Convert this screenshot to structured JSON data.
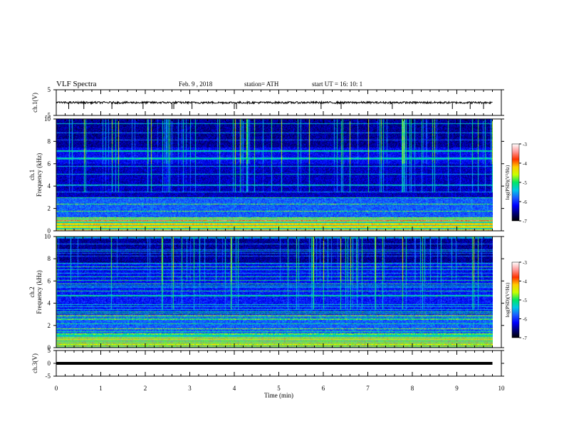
{
  "header": {
    "title": "VLF Spectra",
    "date": "Feb. 9 , 2018",
    "station": "station= ATH",
    "start": "start UT =   16: 10: 1"
  },
  "colors": {
    "spec_ramp": [
      "#000000",
      "#00007a",
      "#0000ff",
      "#1a5cff",
      "#00c8e6",
      "#00e664",
      "#c8ff00",
      "#ffcc00",
      "#ff3300",
      "#ff9999",
      "#ffffff"
    ],
    "trace": "#000000"
  },
  "chart_data": [
    {
      "type": "line",
      "name": "ch1",
      "ylabel": "ch.1(V)",
      "ylim": [
        -5,
        5
      ],
      "yticks": [
        "5",
        "-5"
      ],
      "baseline": 0,
      "noise_amplitude": 0.4,
      "spike_times_min": [
        0.28,
        0.62,
        1.25,
        1.95,
        2.6,
        2.64,
        3.05,
        4.0,
        4.05,
        5.95,
        6.4,
        7.55,
        8.9,
        9.3,
        9.6
      ]
    },
    {
      "type": "heatmap",
      "name": "ch1",
      "ylabel": "ch.1",
      "ylabel2": "Frequency  (kHz)",
      "ylim": [
        0,
        10
      ],
      "yticks": [
        "0",
        "2",
        "4",
        "6",
        "8",
        "10"
      ],
      "colorbar": {
        "label": "log(PSD)(V²/Hz)",
        "range": [
          -7,
          -3
        ],
        "ticks": [
          "-3",
          "-4",
          "-5",
          "-6",
          "-7"
        ]
      }
    },
    {
      "type": "heatmap",
      "name": "ch2",
      "ylabel": "ch.2",
      "ylabel2": "Frequency  (kHz)",
      "ylim": [
        0,
        10
      ],
      "yticks": [
        "0",
        "2",
        "4",
        "6",
        "8",
        "10"
      ],
      "colorbar": {
        "label": "log(PSD)(V²/Hz)",
        "range": [
          -7,
          -3
        ],
        "ticks": [
          "-3",
          "-4",
          "-5",
          "-6",
          "-7"
        ]
      }
    },
    {
      "type": "line",
      "name": "ch3",
      "ylabel": "ch.3(V)",
      "ylim": [
        -5,
        5
      ],
      "yticks": [
        "5",
        "0",
        "-5"
      ],
      "baseline": 0,
      "noise_amplitude": 0.3
    }
  ],
  "xaxis": {
    "label": "Time  (min)",
    "range": [
      0,
      10
    ],
    "data_end": 9.8,
    "ticks": [
      "0",
      "1",
      "2",
      "3",
      "4",
      "5",
      "6",
      "7",
      "8",
      "9",
      "10"
    ]
  }
}
